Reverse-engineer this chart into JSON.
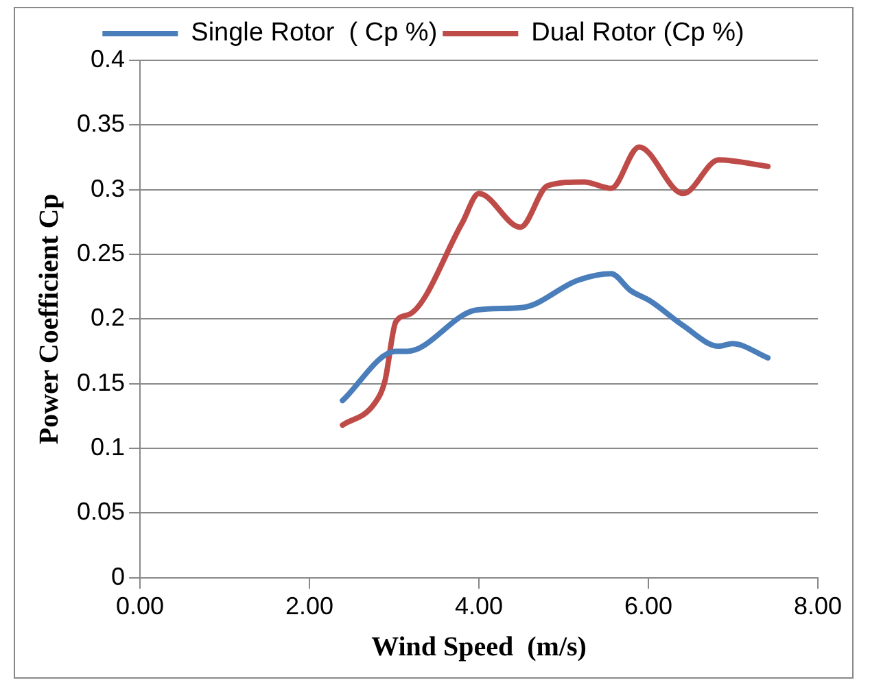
{
  "chart_data": {
    "type": "line",
    "xlabel": "Wind Speed  (m/s)",
    "ylabel": "Power Coefficient Cp",
    "xlim": [
      0,
      8
    ],
    "xticks": [
      {
        "value": 0,
        "label": "0.00"
      },
      {
        "value": 2,
        "label": "2.00"
      },
      {
        "value": 4,
        "label": "4.00"
      },
      {
        "value": 6,
        "label": "6.00"
      },
      {
        "value": 8,
        "label": "8.00"
      }
    ],
    "ylim": [
      0,
      0.4
    ],
    "yticks": [
      0,
      0.05,
      0.1,
      0.15,
      0.2,
      0.25,
      0.3,
      0.35,
      0.4
    ],
    "grid": "y",
    "legend": "top",
    "marker": "none",
    "line_style": "solid",
    "series": [
      {
        "name": "Single Rotor  ( Cp %)",
        "color": "#4a7ebb",
        "x": [
          2.39,
          3.02,
          3.15,
          3.97,
          4.52,
          5.17,
          5.56,
          5.79,
          6.02,
          6.41,
          6.83,
          6.99,
          7.41
        ],
        "values": [
          0.137,
          0.175,
          0.175,
          0.207,
          0.209,
          0.23,
          0.235,
          0.222,
          0.214,
          0.195,
          0.179,
          0.181,
          0.17
        ]
      },
      {
        "name": "Dual Rotor (Cp %)",
        "color": "#be4b48",
        "x": [
          2.39,
          2.76,
          2.89,
          3.02,
          3.19,
          3.8,
          4.0,
          4.49,
          4.81,
          5.24,
          5.56,
          5.89,
          6.41,
          6.83,
          7.41
        ],
        "values": [
          0.118,
          0.134,
          0.152,
          0.198,
          0.204,
          0.274,
          0.297,
          0.271,
          0.303,
          0.306,
          0.301,
          0.333,
          0.297,
          0.323,
          0.318
        ]
      }
    ]
  }
}
